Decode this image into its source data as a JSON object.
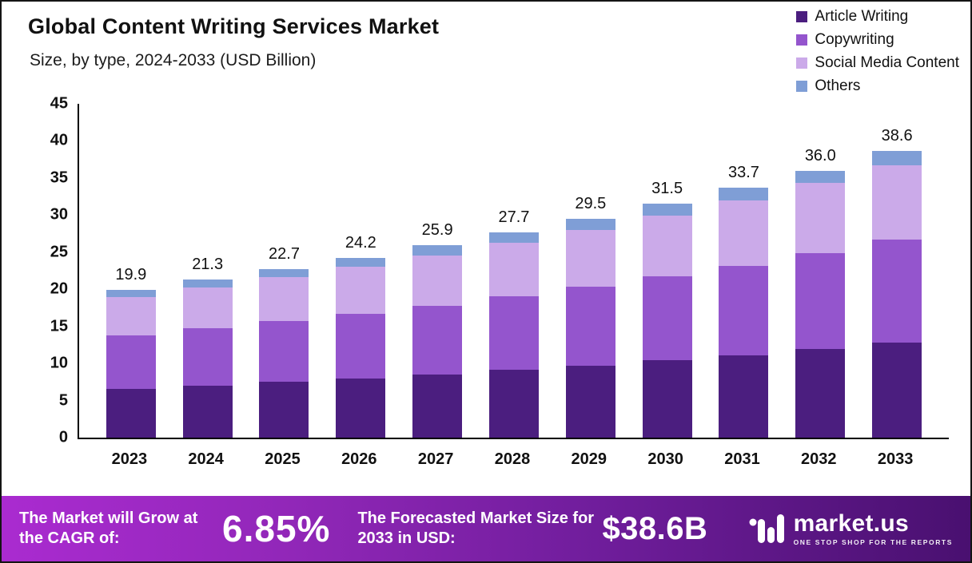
{
  "header": {
    "title": "Global Content Writing Services Market",
    "subtitle": "Size, by type, 2024-2033 (USD Billion)"
  },
  "chart_data": {
    "type": "bar",
    "stacked": true,
    "grid": false,
    "legend_position": "top-right",
    "categories": [
      "2023",
      "2024",
      "2025",
      "2026",
      "2027",
      "2028",
      "2029",
      "2030",
      "2031",
      "2032",
      "2033"
    ],
    "series": [
      {
        "name": "Article Writing",
        "color": "#4b1e7f",
        "values": [
          6.6,
          7.0,
          7.5,
          8.0,
          8.5,
          9.1,
          9.7,
          10.4,
          11.1,
          11.9,
          12.8
        ]
      },
      {
        "name": "Copywriting",
        "color": "#9455cd",
        "values": [
          7.2,
          7.7,
          8.2,
          8.7,
          9.3,
          10.0,
          10.6,
          11.3,
          12.1,
          13.0,
          13.9
        ]
      },
      {
        "name": "Social Media Content",
        "color": "#cbaae9",
        "values": [
          5.1,
          5.5,
          5.9,
          6.3,
          6.8,
          7.2,
          7.7,
          8.2,
          8.8,
          9.4,
          10.0
        ]
      },
      {
        "name": "Others",
        "color": "#7f9ed6",
        "values": [
          1.0,
          1.1,
          1.1,
          1.2,
          1.3,
          1.4,
          1.5,
          1.6,
          1.7,
          1.7,
          1.9
        ]
      }
    ],
    "totals": [
      "19.9",
      "21.3",
      "22.7",
      "24.2",
      "25.9",
      "27.7",
      "29.5",
      "31.5",
      "33.7",
      "36.0",
      "38.6"
    ],
    "ylim": [
      0,
      45
    ],
    "ytick_step": 5,
    "xlabel": "",
    "ylabel": ""
  },
  "banner": {
    "cagr_label": "The Market will Grow at the CAGR of:",
    "cagr_value": "6.85%",
    "forecast_label": "The Forecasted Market Size for 2033 in USD:",
    "forecast_value": "$38.6B",
    "logo_text": "market.us",
    "logo_tagline": "ONE STOP SHOP FOR THE REPORTS"
  }
}
